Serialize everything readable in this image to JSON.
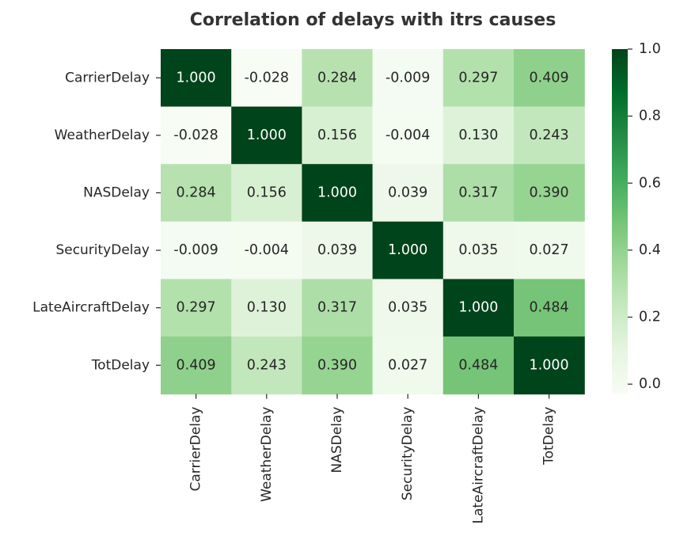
{
  "chart_data": {
    "type": "heatmap",
    "title": "Correlation of delays with itrs causes",
    "xlabel": "",
    "ylabel": "",
    "row_labels": [
      "CarrierDelay",
      "WeatherDelay",
      "NASDelay",
      "SecurityDelay",
      "LateAircraftDelay",
      "TotDelay"
    ],
    "col_labels": [
      "CarrierDelay",
      "WeatherDelay",
      "NASDelay",
      "SecurityDelay",
      "LateAircraftDelay",
      "TotDelay"
    ],
    "values": [
      [
        1.0,
        -0.028,
        0.284,
        -0.009,
        0.297,
        0.409
      ],
      [
        -0.028,
        1.0,
        0.156,
        -0.004,
        0.13,
        0.243
      ],
      [
        0.284,
        0.156,
        1.0,
        0.039,
        0.317,
        0.39
      ],
      [
        -0.009,
        -0.004,
        0.039,
        1.0,
        0.035,
        0.027
      ],
      [
        0.297,
        0.13,
        0.317,
        0.035,
        1.0,
        0.484
      ],
      [
        0.409,
        0.243,
        0.39,
        0.027,
        0.484,
        1.0
      ]
    ],
    "value_labels": [
      [
        "1.000",
        "-0.028",
        "0.284",
        "-0.009",
        "0.297",
        "0.409"
      ],
      [
        "-0.028",
        "1.000",
        "0.156",
        "-0.004",
        "0.130",
        "0.243"
      ],
      [
        "0.284",
        "0.156",
        "1.000",
        "0.039",
        "0.317",
        "0.390"
      ],
      [
        "-0.009",
        "-0.004",
        "0.039",
        "1.000",
        "0.035",
        "0.027"
      ],
      [
        "0.297",
        "0.130",
        "0.317",
        "0.035",
        "1.000",
        "0.484"
      ],
      [
        "0.409",
        "0.243",
        "0.390",
        "0.027",
        "0.484",
        "1.000"
      ]
    ],
    "colormap": "Greens",
    "vmin": -0.028,
    "vmax": 1.0,
    "colorbar": {
      "ticks": [
        0.0,
        0.2,
        0.4,
        0.6,
        0.8,
        1.0
      ],
      "tick_labels": [
        "0.0",
        "0.2",
        "0.4",
        "0.6",
        "0.8",
        "1.0"
      ]
    }
  },
  "colors": {
    "greens_stops": [
      "#f7fcf5",
      "#e5f5e0",
      "#c7e9c0",
      "#a1d99b",
      "#74c476",
      "#41ab5d",
      "#238b45",
      "#006d2c",
      "#00441b"
    ],
    "light_text": "#ffffff",
    "dark_text": "#262626"
  }
}
